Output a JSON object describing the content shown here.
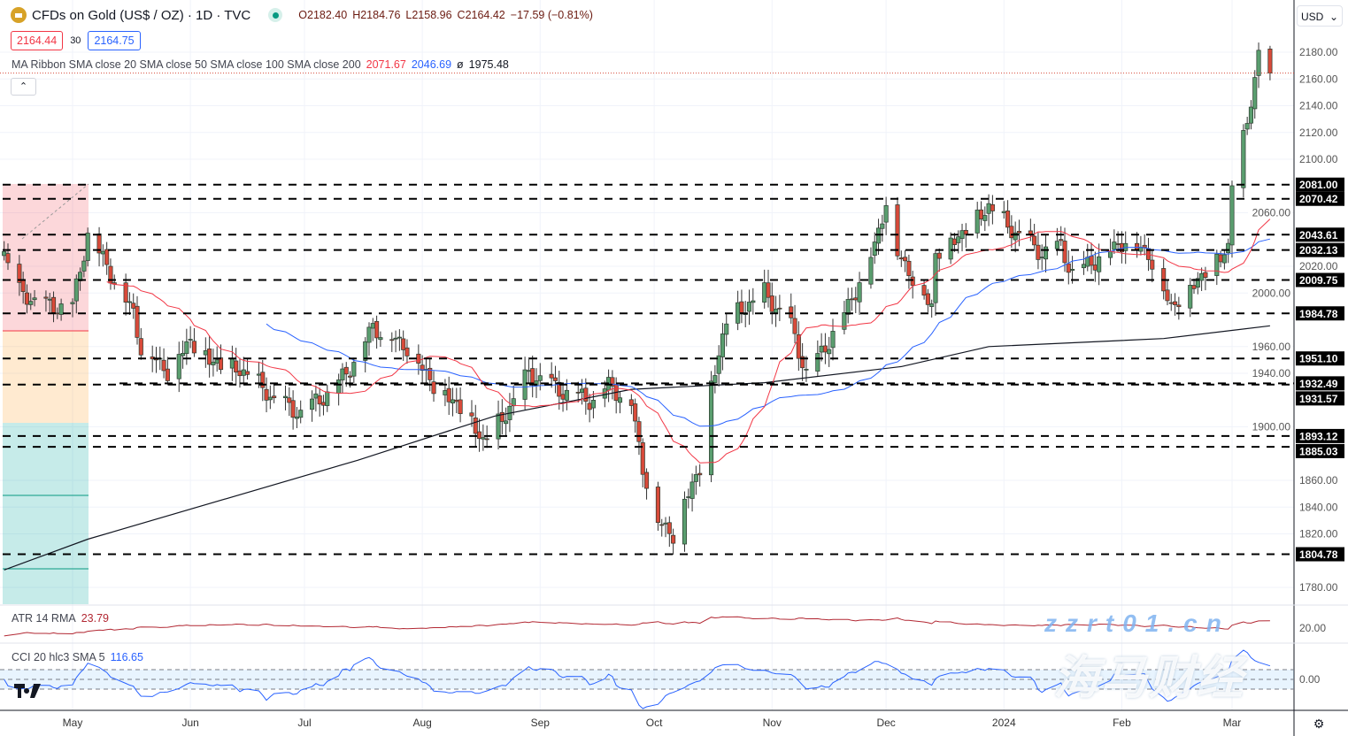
{
  "header": {
    "title": "CFDs on Gold (US$ / OZ) · 1D · TVC",
    "o_label": "O",
    "open": "2182.40",
    "h_label": "H",
    "high": "2184.76",
    "l_label": "L",
    "low": "2158.96",
    "c_label": "C",
    "close": "2164.42",
    "change": "−17.59 (−0.81%)"
  },
  "trade": {
    "sell": "2164.44",
    "spread": "30",
    "buy": "2164.75"
  },
  "ma_legend": {
    "name": "MA Ribbon SMA close 20 SMA close 50 SMA close 100 SMA close 200",
    "v20": "2071.67",
    "v50": "2046.69",
    "v100": "ø",
    "v200": "1975.48"
  },
  "currency": {
    "value": "USD",
    "chevron": "⌄"
  },
  "collapse_icon": "⌃",
  "atr": {
    "label": "ATR 14 RMA",
    "value": "23.79",
    "tick": "20.00"
  },
  "cci": {
    "label": "CCI 20 hlc3 SMA 5",
    "value": "116.65",
    "tick": "0.00"
  },
  "watermark": {
    "cn": "海马财经",
    "url": "zzrt01.cn"
  },
  "tv_logo": "TV",
  "settings_icon": "⚙",
  "chart_data": {
    "type": "candlestick",
    "colors": {
      "up": "#5a9e6f",
      "down": "#d84a3a",
      "sma20": "#f23645",
      "sma50": "#2962ff",
      "sma200": "#131722",
      "atr": "#b22833",
      "cci": "#2962ff",
      "level": "#000000"
    },
    "y_ticks": [
      2180,
      2160,
      2140,
      2120,
      2100,
      2060,
      2020,
      2000,
      1960,
      1940,
      1900,
      1860,
      1840,
      1820,
      1780
    ],
    "x_ticks": [
      {
        "label": "May",
        "date": "2023-05-01"
      },
      {
        "label": "Jun",
        "date": "2023-06-01"
      },
      {
        "label": "Jul",
        "date": "2023-07-01"
      },
      {
        "label": "Aug",
        "date": "2023-08-01"
      },
      {
        "label": "Sep",
        "date": "2023-09-01"
      },
      {
        "label": "Oct",
        "date": "2023-10-01"
      },
      {
        "label": "Nov",
        "date": "2023-11-01"
      },
      {
        "label": "Dec",
        "date": "2023-12-01"
      },
      {
        "label": "2024",
        "date": "2024-01-01"
      },
      {
        "label": "Feb",
        "date": "2024-02-01"
      },
      {
        "label": "Mar",
        "date": "2024-03-01"
      }
    ],
    "levels": [
      "2081.00",
      "2070.42",
      "2043.61",
      "2032.13",
      "2009.75",
      "1984.78",
      "1951.10",
      "1932.49",
      "1931.57",
      "1893.12",
      "1885.03",
      "1804.78"
    ],
    "close_path": [
      [
        "2023-04-13",
        2030
      ],
      [
        "2023-04-17",
        2000
      ],
      [
        "2023-04-24",
        1990
      ],
      [
        "2023-05-01",
        1990
      ],
      [
        "2023-05-05",
        2045
      ],
      [
        "2023-05-10",
        2020
      ],
      [
        "2023-05-17",
        1985
      ],
      [
        "2023-05-19",
        1960
      ],
      [
        "2023-05-26",
        1942
      ],
      [
        "2023-06-01",
        1965
      ],
      [
        "2023-06-06",
        1950
      ],
      [
        "2023-06-16",
        1940
      ],
      [
        "2023-06-23",
        1920
      ],
      [
        "2023-06-30",
        1910
      ],
      [
        "2023-07-07",
        1925
      ],
      [
        "2023-07-12",
        1940
      ],
      [
        "2023-07-19",
        1975
      ],
      [
        "2023-07-28",
        1960
      ],
      [
        "2023-08-04",
        1932
      ],
      [
        "2023-08-11",
        1915
      ],
      [
        "2023-08-17",
        1890
      ],
      [
        "2023-08-22",
        1905
      ],
      [
        "2023-08-29",
        1940
      ],
      [
        "2023-09-08",
        1925
      ],
      [
        "2023-09-15",
        1920
      ],
      [
        "2023-09-19",
        1932
      ],
      [
        "2023-09-25",
        1918
      ],
      [
        "2023-09-28",
        1870
      ],
      [
        "2023-10-02",
        1830
      ],
      [
        "2023-10-06",
        1820
      ],
      [
        "2023-10-09",
        1845
      ],
      [
        "2023-10-13",
        1870
      ],
      [
        "2023-10-16",
        1930
      ],
      [
        "2023-10-20",
        1980
      ],
      [
        "2023-10-30",
        2000
      ],
      [
        "2023-11-06",
        1975
      ],
      [
        "2023-11-10",
        1940
      ],
      [
        "2023-11-14",
        1955
      ],
      [
        "2023-11-21",
        1990
      ],
      [
        "2023-11-28",
        2035
      ],
      [
        "2023-12-01",
        2070
      ],
      [
        "2023-12-04",
        2030
      ],
      [
        "2023-12-13",
        1990
      ],
      [
        "2023-12-14",
        2030
      ],
      [
        "2023-12-21",
        2045
      ],
      [
        "2023-12-28",
        2065
      ],
      [
        "2024-01-04",
        2045
      ],
      [
        "2024-01-11",
        2030
      ],
      [
        "2024-01-16",
        2035
      ],
      [
        "2024-01-19",
        2015
      ],
      [
        "2024-01-25",
        2025
      ],
      [
        "2024-02-02",
        2040
      ],
      [
        "2024-02-08",
        2030
      ],
      [
        "2024-02-14",
        1990
      ],
      [
        "2024-02-19",
        2005
      ],
      [
        "2024-02-26",
        2025
      ],
      [
        "2024-02-29",
        2035
      ],
      [
        "2024-03-01",
        2082
      ],
      [
        "2024-03-04",
        2115
      ],
      [
        "2024-03-06",
        2145
      ],
      [
        "2024-03-07",
        2160
      ],
      [
        "2024-03-08",
        2180
      ]
    ],
    "last_bar": {
      "date": "2024-03-11",
      "open": 2182.4,
      "high": 2184.76,
      "low": 2158.96,
      "close": 2164.42
    },
    "sma200": [
      [
        "2023-04-13",
        1793
      ],
      [
        "2023-05-05",
        1816
      ],
      [
        "2023-07-15",
        1875
      ],
      [
        "2023-08-20",
        1908
      ],
      [
        "2023-09-25",
        1928
      ],
      [
        "2023-10-30",
        1933
      ],
      [
        "2023-12-05",
        1945
      ],
      [
        "2023-12-28",
        1960
      ],
      [
        "2024-02-12",
        1966
      ],
      [
        "2024-03-11",
        1975.48
      ]
    ],
    "position_tool": {
      "stop_zone": "red",
      "entry_zone": "orange",
      "target_zone": "teal"
    }
  }
}
